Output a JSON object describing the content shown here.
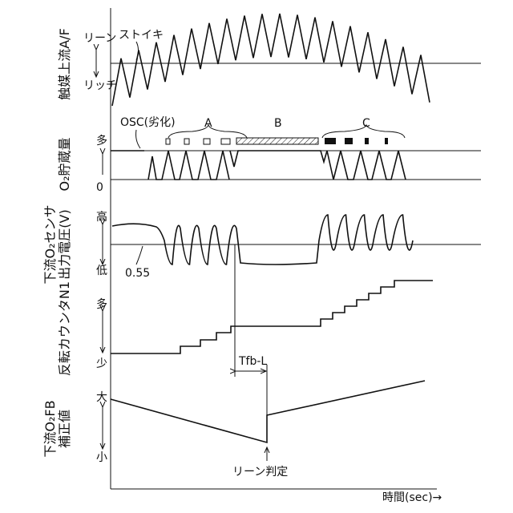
{
  "panels": [
    {
      "label": [
        "触媒上流A/F"
      ],
      "top": "リーン",
      "mid": "ストイキ",
      "bottom": "リッチ"
    },
    {
      "label": [
        "O₂貯蔵量"
      ],
      "top": "多",
      "bottom": "0",
      "osc": "OSC(劣化)",
      "regions": [
        "A",
        "B",
        "C"
      ]
    },
    {
      "label": [
        "下流O₂センサ",
        "出力電圧(V)"
      ],
      "top": "高",
      "bottom": "低",
      "threshold": "0.55"
    },
    {
      "label": [
        "反転カウンタN1"
      ],
      "top": "多",
      "bottom": "少",
      "interval": "Tfb-L"
    },
    {
      "label": [
        "下流O₂FB",
        "補正値"
      ],
      "top": "大",
      "bottom": "小",
      "event": "リーン判定"
    }
  ],
  "x_axis": "時間(sec)→"
}
